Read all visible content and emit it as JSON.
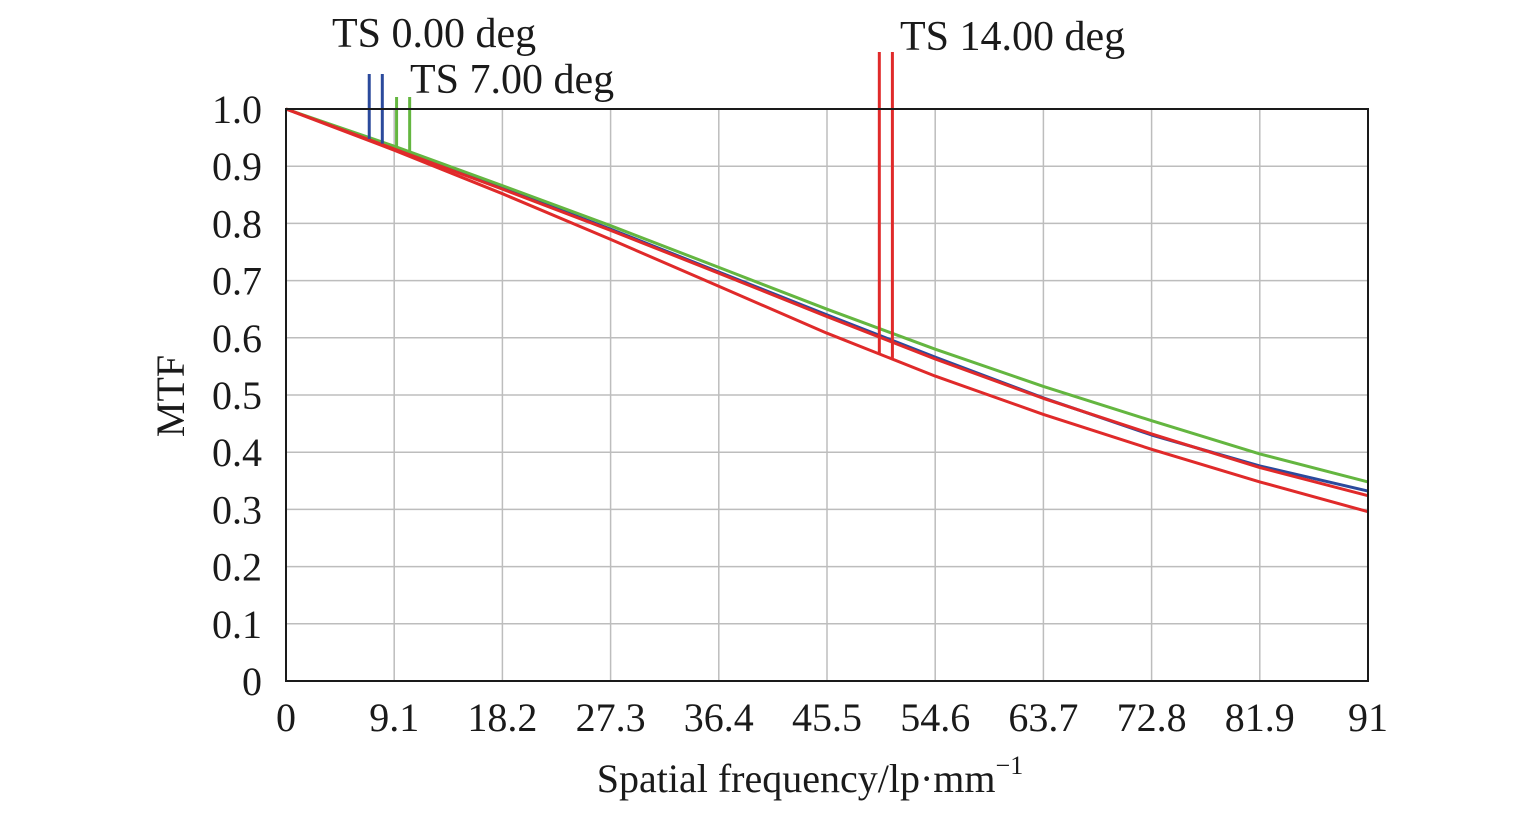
{
  "chart_data": {
    "type": "line",
    "xlabel": "Spatial frequency/lp·mm",
    "xlabel_superscript": "−1",
    "ylabel": "MTF",
    "xlim": [
      0,
      91
    ],
    "ylim": [
      0,
      1.0
    ],
    "xticks": [
      0,
      9.1,
      18.2,
      27.3,
      36.4,
      45.5,
      54.6,
      63.7,
      72.8,
      81.9,
      91
    ],
    "xtick_labels": [
      "0",
      "9.1",
      "18.2",
      "27.3",
      "36.4",
      "45.5",
      "54.6",
      "63.7",
      "72.8",
      "81.9",
      "91"
    ],
    "yticks": [
      0,
      0.1,
      0.2,
      0.3,
      0.4,
      0.5,
      0.6,
      0.7,
      0.8,
      0.9,
      1.0
    ],
    "ytick_labels": [
      "0",
      "0.1",
      "0.2",
      "0.3",
      "0.4",
      "0.5",
      "0.6",
      "0.7",
      "0.8",
      "0.9",
      "1.0"
    ],
    "grid": true,
    "series": [
      {
        "field_label": "TS 0.00 deg",
        "color": "#2b4a9c",
        "x": [
          0,
          9.1,
          18.2,
          27.3,
          36.4,
          45.5,
          54.6,
          63.7,
          72.8,
          81.9,
          91
        ],
        "y": [
          1.0,
          0.932,
          0.862,
          0.79,
          0.715,
          0.64,
          0.566,
          0.495,
          0.43,
          0.376,
          0.332
        ],
        "marker_x": [
          7,
          8.1
        ]
      },
      {
        "field_label": "TS 7.00 deg",
        "color": "#64b640",
        "x": [
          0,
          9.1,
          18.2,
          27.3,
          36.4,
          45.5,
          54.6,
          63.7,
          72.8,
          81.9,
          91
        ],
        "y": [
          1.0,
          0.935,
          0.866,
          0.796,
          0.723,
          0.65,
          0.58,
          0.515,
          0.455,
          0.397,
          0.348
        ],
        "marker_x": [
          9.3,
          10.4
        ]
      },
      {
        "field_label": "TS 14.00 deg",
        "color": "#e02a2a",
        "x": [
          0,
          9.1,
          18.2,
          27.3,
          36.4,
          45.5,
          54.6,
          63.7,
          72.8,
          81.9,
          91
        ],
        "y": [
          1.0,
          0.93,
          0.86,
          0.788,
          0.713,
          0.637,
          0.563,
          0.494,
          0.432,
          0.373,
          0.324
        ],
        "marker_x": [
          49.9,
          51
        ]
      },
      {
        "color": "#e02a2a",
        "x": [
          0,
          9.1,
          18.2,
          27.3,
          36.4,
          45.5,
          54.6,
          63.7,
          72.8,
          81.9,
          91
        ],
        "y": [
          1.0,
          0.928,
          0.852,
          0.772,
          0.69,
          0.608,
          0.533,
          0.466,
          0.405,
          0.348,
          0.296
        ]
      }
    ]
  }
}
